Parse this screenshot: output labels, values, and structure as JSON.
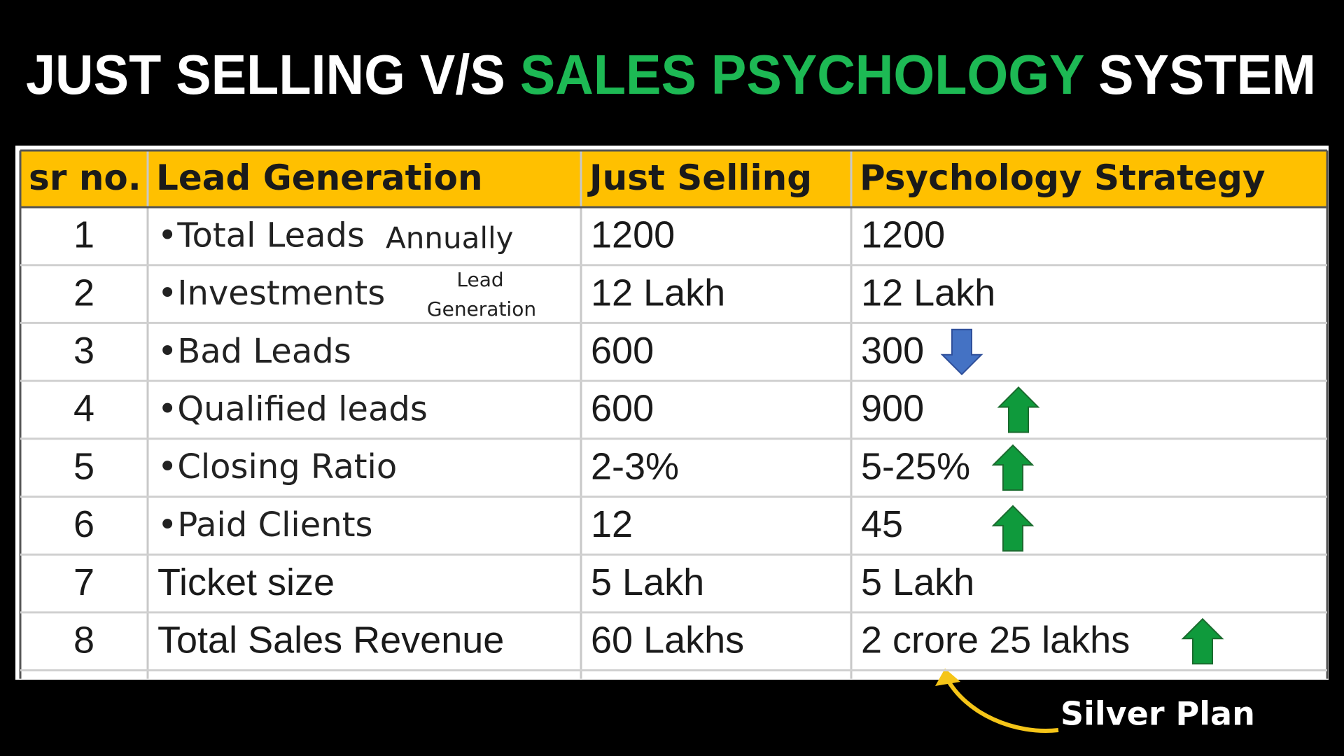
{
  "header": {
    "title_parts": [
      "JUST SELLING V/S",
      "SALES PSYCHOLOGY",
      "SYSTEM"
    ]
  },
  "table": {
    "columns": [
      "sr no.",
      "Lead Generation",
      "Just Selling",
      "Psychology Strategy"
    ],
    "rows": [
      [
        "1",
        "•Total Leads",
        "1200",
        "1200"
      ],
      [
        "2",
        "•Investments",
        "12 Lakh",
        "12 Lakh"
      ],
      [
        "3",
        "•Bad Leads",
        "600",
        "300"
      ],
      [
        "4",
        "•Qualified leads",
        "600",
        "900"
      ],
      [
        "5",
        "•Closing Ratio",
        "2-3%",
        "5-25%"
      ],
      [
        "6",
        "•Paid Clients",
        "12",
        "45"
      ],
      [
        "7",
        "Ticket size",
        "5 Lakh",
        "5 Lakh"
      ],
      [
        "8",
        "Total Sales Revenue",
        "60 Lakhs",
        "2 crore 25 lakhs"
      ]
    ]
  },
  "annotations": {
    "annually": "Annually",
    "lead_generation": [
      "Lead",
      "Generation"
    ],
    "silver_plan": "Silver Plan"
  }
}
